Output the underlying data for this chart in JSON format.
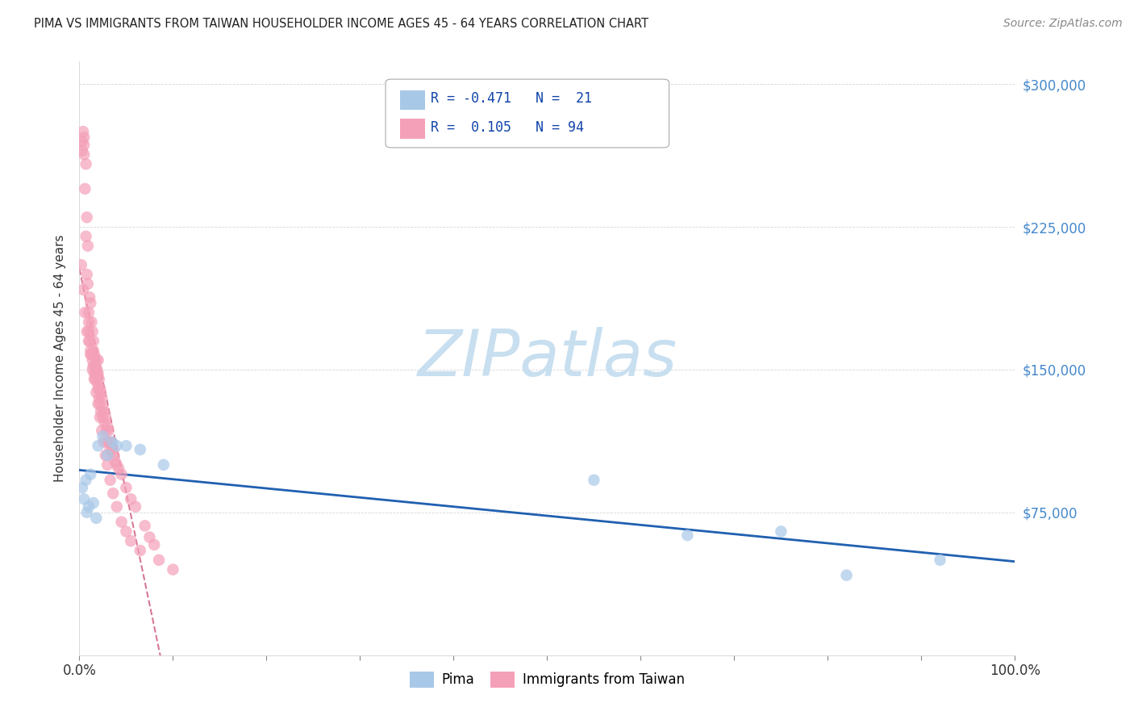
{
  "title": "PIMA VS IMMIGRANTS FROM TAIWAN HOUSEHOLDER INCOME AGES 45 - 64 YEARS CORRELATION CHART",
  "source": "Source: ZipAtlas.com",
  "ylabel": "Householder Income Ages 45 - 64 years",
  "xlim": [
    0,
    100
  ],
  "ylim": [
    0,
    312000
  ],
  "ytick_positions": [
    0,
    75000,
    150000,
    225000,
    300000
  ],
  "ytick_labels": [
    "",
    "$75,000",
    "$150,000",
    "$225,000",
    "$300,000"
  ],
  "xtick_positions": [
    0,
    10,
    20,
    30,
    40,
    50,
    60,
    70,
    80,
    90,
    100
  ],
  "xtick_labels": [
    "0.0%",
    "",
    "",
    "",
    "",
    "",
    "",
    "",
    "",
    "",
    "100.0%"
  ],
  "pima_color": "#a8c8e8",
  "taiwan_color": "#f4a0b8",
  "pima_line_color": "#2060b0",
  "taiwan_line_color": "#d06080",
  "watermark_color": "#c8dff0",
  "background_color": "#ffffff",
  "grid_color": "#cccccc",
  "ytick_color": "#4488cc",
  "title_color": "#222222",
  "source_color": "#888888",
  "legend_text_color": "#1144aa",
  "pima_x": [
    0.3,
    0.5,
    0.7,
    0.8,
    1.0,
    1.2,
    1.5,
    1.8,
    2.0,
    2.5,
    3.0,
    3.5,
    4.0,
    5.0,
    6.5,
    9.0,
    55.0,
    65.0,
    75.0,
    82.0,
    92.0
  ],
  "pima_y": [
    88000,
    82000,
    92000,
    75000,
    78000,
    95000,
    80000,
    72000,
    110000,
    115000,
    105000,
    112000,
    110000,
    110000,
    108000,
    100000,
    92000,
    63000,
    65000,
    42000,
    50000
  ],
  "taiwan_x": [
    0.2,
    0.3,
    0.3,
    0.4,
    0.5,
    0.5,
    0.5,
    0.6,
    0.7,
    0.7,
    0.8,
    0.8,
    0.9,
    0.9,
    1.0,
    1.0,
    1.0,
    1.1,
    1.1,
    1.2,
    1.2,
    1.3,
    1.3,
    1.4,
    1.4,
    1.5,
    1.5,
    1.5,
    1.6,
    1.6,
    1.7,
    1.7,
    1.8,
    1.8,
    1.9,
    1.9,
    2.0,
    2.0,
    2.0,
    2.1,
    2.1,
    2.2,
    2.2,
    2.3,
    2.3,
    2.4,
    2.5,
    2.5,
    2.6,
    2.7,
    2.8,
    2.9,
    3.0,
    3.0,
    3.1,
    3.2,
    3.3,
    3.4,
    3.5,
    3.6,
    3.7,
    3.8,
    4.0,
    4.2,
    4.5,
    5.0,
    5.5,
    6.0,
    7.0,
    7.5,
    8.0,
    0.4,
    0.6,
    0.8,
    1.0,
    1.2,
    1.4,
    1.6,
    1.8,
    2.0,
    2.2,
    2.4,
    2.6,
    2.8,
    3.0,
    3.3,
    3.6,
    4.0,
    4.5,
    5.0,
    5.5,
    6.5,
    8.5,
    10.0
  ],
  "taiwan_y": [
    205000,
    265000,
    270000,
    275000,
    268000,
    272000,
    263000,
    245000,
    258000,
    220000,
    230000,
    200000,
    195000,
    215000,
    180000,
    175000,
    170000,
    188000,
    165000,
    185000,
    160000,
    175000,
    158000,
    170000,
    155000,
    165000,
    160000,
    152000,
    158000,
    148000,
    152000,
    145000,
    155000,
    148000,
    150000,
    143000,
    148000,
    140000,
    155000,
    145000,
    135000,
    140000,
    132000,
    138000,
    128000,
    135000,
    130000,
    125000,
    128000,
    122000,
    125000,
    118000,
    120000,
    112000,
    118000,
    112000,
    108000,
    112000,
    110000,
    108000,
    105000,
    102000,
    100000,
    98000,
    95000,
    88000,
    82000,
    78000,
    68000,
    62000,
    58000,
    192000,
    180000,
    170000,
    165000,
    158000,
    150000,
    145000,
    138000,
    132000,
    125000,
    118000,
    112000,
    105000,
    100000,
    92000,
    85000,
    78000,
    70000,
    65000,
    60000,
    55000,
    50000,
    45000
  ]
}
